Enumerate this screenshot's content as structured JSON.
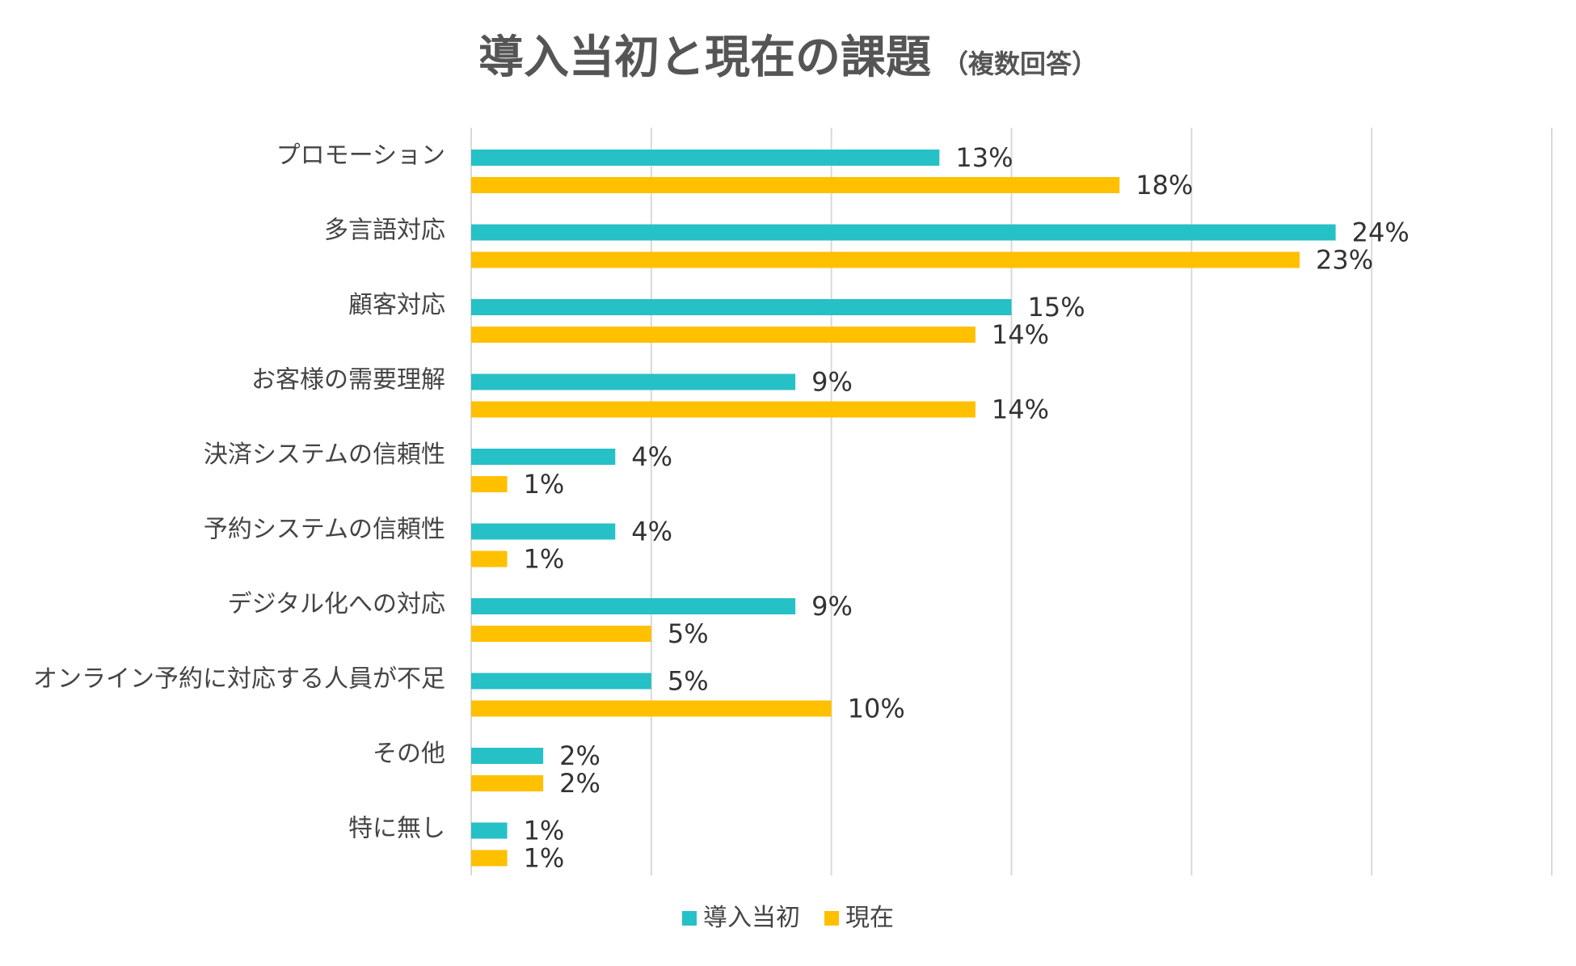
{
  "chart_data": {
    "type": "bar",
    "orientation": "horizontal",
    "title": "導入当初と現在の課題",
    "subtitle": "（複数回答）",
    "categories": [
      "プロモーション",
      "多言語対応",
      "顧客対応",
      "お客様の需要理解",
      "決済システムの信頼性",
      "予約システムの信頼性",
      "デジタル化への対応",
      "オンライン予約に対応する人員が不足",
      "その他",
      "特に無し"
    ],
    "series": [
      {
        "name": "導入当初",
        "color": "#26c0c7",
        "values": [
          13,
          24,
          15,
          9,
          4,
          4,
          9,
          5,
          2,
          1
        ]
      },
      {
        "name": "現在",
        "color": "#ffc000",
        "values": [
          18,
          23,
          14,
          14,
          1,
          1,
          5,
          10,
          2,
          1
        ]
      }
    ],
    "value_suffix": "%",
    "xlim": [
      0,
      30
    ],
    "grid": true,
    "legend": "bottom"
  }
}
